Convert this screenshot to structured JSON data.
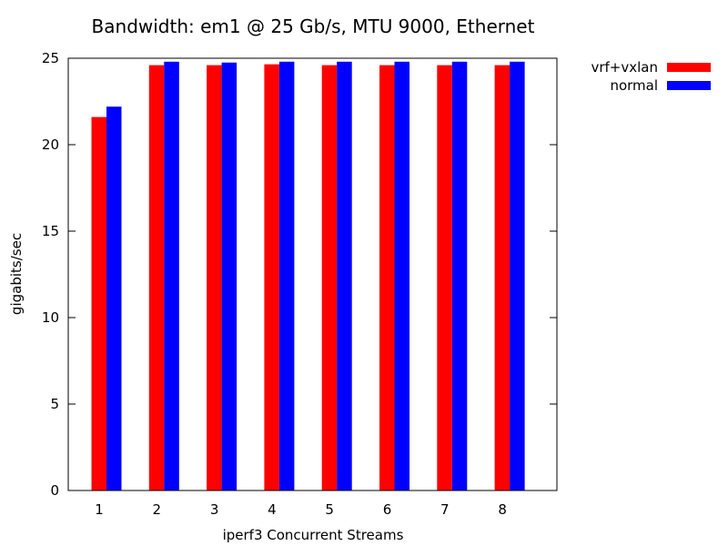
{
  "chart_data": {
    "type": "bar",
    "title": "Bandwidth: em1 @ 25 Gb/s, MTU 9000, Ethernet",
    "xlabel": "iperf3 Concurrent Streams",
    "ylabel": "gigabits/sec",
    "categories": [
      "1",
      "2",
      "3",
      "4",
      "5",
      "6",
      "7",
      "8"
    ],
    "ylim": [
      0,
      25
    ],
    "yticks": [
      0,
      5,
      10,
      15,
      20,
      25
    ],
    "grid": false,
    "legend_position": "outside-top-right",
    "series": [
      {
        "name": "vrf+vxlan",
        "color": "#ff0000",
        "values": [
          21.6,
          24.6,
          24.6,
          24.65,
          24.6,
          24.6,
          24.6,
          24.6
        ]
      },
      {
        "name": "normal",
        "color": "#0000ff",
        "values": [
          22.2,
          24.8,
          24.75,
          24.8,
          24.8,
          24.8,
          24.8,
          24.8
        ]
      }
    ]
  }
}
